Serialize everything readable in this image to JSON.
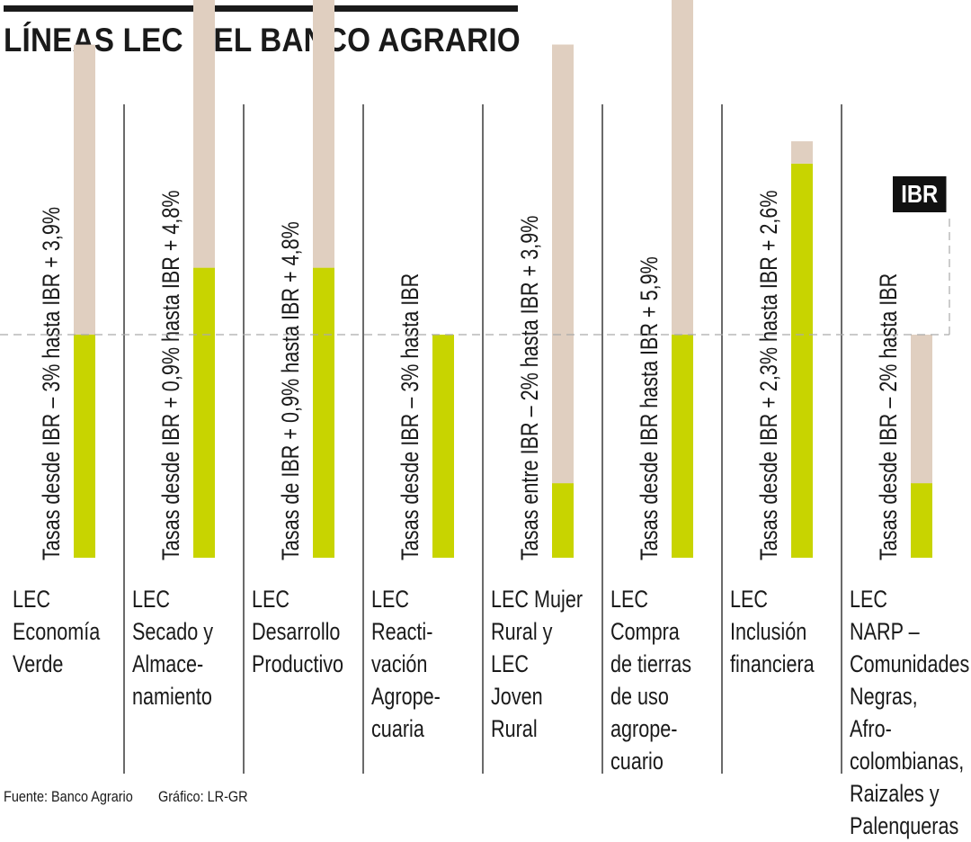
{
  "header": {
    "title": "LÍNEAS LEC DEL BANCO AGRARIO"
  },
  "footer": {
    "source": "Fuente: Banco Agrario",
    "credit": "Gráfico: LR-GR"
  },
  "reference_label": "IBR",
  "colors": {
    "green": "#c8d400",
    "beige": "#e0cfc0",
    "light_green": "#e4e88c",
    "rule": "#1a1a1a",
    "ibr_line": "#aaaaaa"
  },
  "chart_data": {
    "type": "bar",
    "title": "LÍNEAS LEC DEL BANCO AGRARIO",
    "reference": {
      "label": "IBR",
      "value": 0
    },
    "units": "percentage points relative to IBR",
    "ylim": [
      -3,
      5.9
    ],
    "grid": false,
    "bars": [
      {
        "category": "LEC\nEconomía\nVerde",
        "rate_label": "Tasas desde IBR – 3% hasta IBR + 3,9%",
        "min": -3,
        "max": 3.9
      },
      {
        "category": "LEC\nSecado y\nAlmace-\nnamiento",
        "rate_label": "Tasas desde IBR + 0,9% hasta IBR + 4,8%",
        "min": 0.9,
        "max": 4.8
      },
      {
        "category": "LEC\nDesarrollo\nProductivo",
        "rate_label": "Tasas de IBR + 0,9% hasta IBR + 4,8%",
        "min": 0.9,
        "max": 4.8
      },
      {
        "category": "LEC\nReacti-\nvación\nAgrope-\ncuaria",
        "rate_label": "Tasas desde IBR – 3% hasta IBR",
        "min": -3,
        "max": 0
      },
      {
        "category": "LEC Mujer\nRural y\nLEC Joven\nRural",
        "rate_label": "Tasas entre IBR – 2% hasta IBR + 3,9%",
        "min": -2,
        "max": 3.9
      },
      {
        "category": "LEC Compra\nde tierras\nde uso\nagrope-\ncuario",
        "rate_label": "Tasas desde IBR hasta IBR + 5,9%",
        "min": 0,
        "max": 5.9
      },
      {
        "category": "LEC\nInclusión\nfinanciera",
        "rate_label": "Tasas desde IBR + 2,3% hasta IBR + 2,6%",
        "min": 2.3,
        "max": 2.6
      },
      {
        "category": "LEC NARP –\nComunidades\nNegras,\nAfro-\ncolombianas,\nRaizales y\nPalenqueras",
        "rate_label": "Tasas desde IBR – 2% hasta IBR",
        "min": -2,
        "max": 0
      }
    ]
  }
}
